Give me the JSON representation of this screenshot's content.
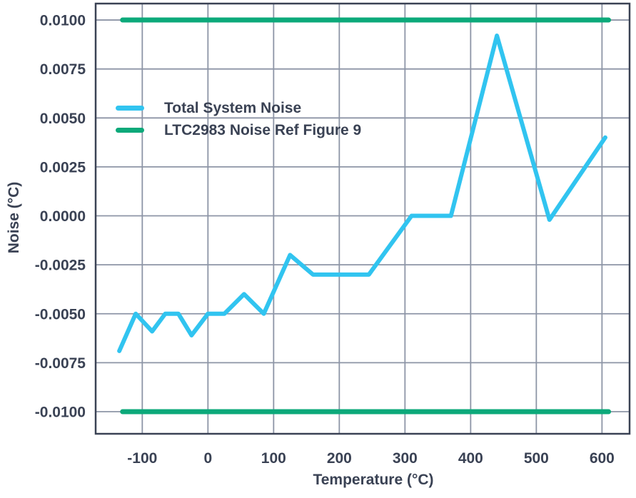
{
  "figure": {
    "background": "#ffffff"
  },
  "colors": {
    "axis": "#3A4254",
    "grid": "#8D95A6",
    "total_system_noise": "#31C4F0",
    "noise_ref": "#0CA97A"
  },
  "chart_data": {
    "type": "line",
    "title": "",
    "xlabel": "Temperature (°C)",
    "ylabel": "Noise (°C)",
    "grid": true,
    "legend_position": "upper-left-inside",
    "xlim": [
      -171,
      642
    ],
    "ylim": [
      -0.01113,
      0.01084
    ],
    "xticks": [
      -100,
      0,
      100,
      200,
      300,
      400,
      500,
      600
    ],
    "xtick_labels": [
      "-100",
      "0",
      "100",
      "200",
      "300",
      "400",
      "500",
      "600"
    ],
    "yticks": [
      0.01,
      0.0075,
      0.005,
      0.0025,
      0.0,
      -0.0025,
      -0.005,
      -0.0075,
      -0.01
    ],
    "ytick_labels": [
      "0.0100",
      "0.0075",
      "0.0050",
      "0.0025",
      "0.0000",
      "-0.0025",
      "-0.0050",
      "-0.0075",
      "-0.0100"
    ],
    "series": [
      {
        "name": "Total System Noise",
        "color_key": "total_system_noise",
        "stroke_width": 6,
        "lines": [
          [
            [
              -135,
              -0.0069
            ],
            [
              -110,
              -0.005
            ],
            [
              -85,
              -0.0059
            ],
            [
              -65,
              -0.005
            ],
            [
              -45,
              -0.005
            ],
            [
              -25,
              -0.0061
            ],
            [
              0,
              -0.005
            ],
            [
              25,
              -0.005
            ],
            [
              55,
              -0.004
            ],
            [
              85,
              -0.005
            ],
            [
              125,
              -0.002
            ],
            [
              160,
              -0.003
            ],
            [
              245,
              -0.003
            ],
            [
              310,
              0.0
            ],
            [
              370,
              0.0
            ],
            [
              440,
              0.0092
            ],
            [
              520,
              -0.0002
            ],
            [
              605,
              0.004
            ]
          ]
        ]
      },
      {
        "name": "LTC2983 Noise Ref Figure 9",
        "color_key": "noise_ref",
        "stroke_width": 7,
        "lines": [
          [
            [
              -130,
              0.01
            ],
            [
              610,
              0.01
            ]
          ],
          [
            [
              -130,
              -0.01
            ],
            [
              610,
              -0.01
            ]
          ]
        ]
      }
    ]
  }
}
